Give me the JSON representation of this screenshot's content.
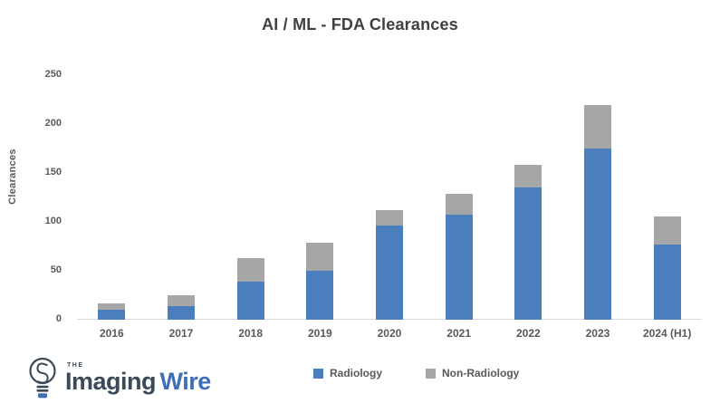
{
  "title": "AI / ML - FDA Clearances",
  "colors": {
    "radiology": "#4a7ebc",
    "non_radiology": "#a6a6a6",
    "title_text": "#404040",
    "axis_text": "#595959",
    "axis_line": "#d9d9d9",
    "logo_dark": "#3b4a59",
    "logo_blue": "#3f6fb6"
  },
  "chart_data": {
    "type": "bar",
    "stacked": true,
    "title": "AI / ML - FDA Clearances",
    "categories": [
      "2016",
      "2017",
      "2018",
      "2019",
      "2020",
      "2021",
      "2022",
      "2023",
      "2024 (H1)"
    ],
    "series": [
      {
        "name": "Radiology",
        "values": [
          10,
          14,
          39,
          50,
          96,
          107,
          135,
          175,
          77
        ]
      },
      {
        "name": "Non-Radiology",
        "values": [
          7,
          11,
          24,
          29,
          16,
          22,
          23,
          44,
          29
        ]
      }
    ],
    "xlabel": "",
    "ylabel": "Clearances",
    "ylim": [
      0,
      250
    ],
    "yticks": [
      0,
      50,
      100,
      150,
      200,
      250
    ],
    "grid": false,
    "legend_position": "bottom"
  },
  "logo": {
    "the": "THE",
    "imaging": "Imaging",
    "wire": "Wire"
  }
}
